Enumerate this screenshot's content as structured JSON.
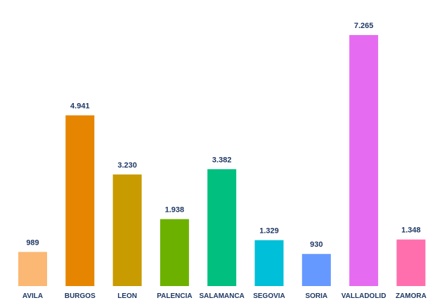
{
  "chart_data": {
    "type": "bar",
    "title": "",
    "xlabel": "",
    "ylabel": "",
    "ylim": [
      0,
      7265
    ],
    "grid": false,
    "legend": "none",
    "categories": [
      "AVILA",
      "BURGOS",
      "LEON",
      "PALENCIA",
      "SALAMANCA",
      "SEGOVIA",
      "SORIA",
      "VALLADOLID",
      "ZAMORA"
    ],
    "values": [
      989,
      4941,
      3230,
      1938,
      3382,
      1329,
      930,
      7265,
      1348
    ],
    "value_labels": [
      "989",
      "4.941",
      "3.230",
      "1.938",
      "3.382",
      "1.329",
      "930",
      "7.265",
      "1.348"
    ],
    "colors": [
      "#fbb874",
      "#e68600",
      "#c89b00",
      "#6db100",
      "#00bf7f",
      "#00bfd8",
      "#6699ff",
      "#e56cf1",
      "#ff6fad"
    ]
  }
}
